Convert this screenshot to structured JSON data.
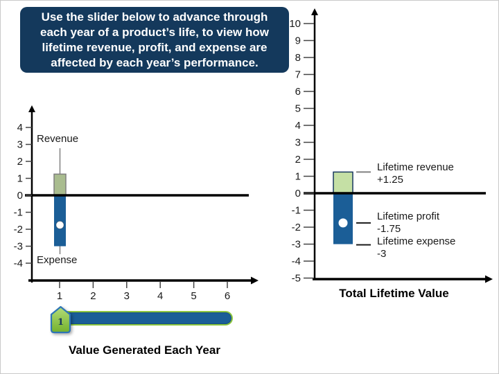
{
  "instruction_box": {
    "text": "Use the slider below to advance through each year of a product’s life, to view how lifetime revenue, profit, and expense are affected by each year’s performance.",
    "lines": [
      "Use the slider below to advance through",
      "each year of a product’s life, to view how",
      "lifetime revenue, profit, and expense are",
      "affected by each year’s performance."
    ]
  },
  "left_chart": {
    "title": "Value Generated Each Year",
    "revenue_label": "Revenue",
    "expense_label": "Expense"
  },
  "right_chart": {
    "title": "Total Lifetime Value",
    "revenue_label": "Lifetime revenue",
    "revenue_value": "+1.25",
    "profit_label": "Lifetime profit",
    "profit_value": "-1.75",
    "expense_label": "Lifetime expense",
    "expense_value": "-3"
  },
  "slider": {
    "value": "1",
    "min": 1,
    "max": 6
  },
  "colors": {
    "box_navy": "#14395C",
    "bar_blue": "#1B5E97",
    "bar_green_left": "#A9BC8F",
    "bar_green_left_border": "#7F7F7F",
    "bar_green_right": "#C5E0A5",
    "bar_green_right_border": "#17375E",
    "axis_black": "#000000",
    "connector_gray": "#808080",
    "slider_green": "#8DC63F",
    "handle_border_blue": "#2E75B6"
  },
  "chart_data": [
    {
      "id": "value-generated-each-year",
      "type": "bar",
      "title": "Value Generated Each Year",
      "x_ticks": [
        "1",
        "2",
        "3",
        "4",
        "5",
        "6"
      ],
      "y_ticks": [
        4,
        3,
        2,
        1,
        0,
        -1,
        -2,
        -3,
        -4
      ],
      "ylim": [
        -4.8,
        4.8
      ],
      "xlim": [
        0,
        6.7
      ],
      "grid": false,
      "current_year": 1,
      "series": [
        {
          "name": "Revenue",
          "year": 1,
          "value": 1.25
        },
        {
          "name": "Profit",
          "year": 1,
          "value": -1.75,
          "marker": "white-dot"
        },
        {
          "name": "Expense",
          "year": 1,
          "value": -3
        }
      ],
      "annotations": [
        "Revenue",
        "Expense"
      ]
    },
    {
      "id": "total-lifetime-value",
      "type": "bar",
      "title": "Total Lifetime Value",
      "y_ticks": [
        10,
        9,
        8,
        7,
        6,
        5,
        4,
        3,
        2,
        1,
        0,
        -1,
        -2,
        -3,
        -4,
        -5
      ],
      "ylim": [
        -5.2,
        10.8
      ],
      "grid": false,
      "series": [
        {
          "name": "Lifetime revenue",
          "value": 1.25,
          "label_value": "+1.25"
        },
        {
          "name": "Lifetime profit",
          "value": -1.75,
          "label_value": "-1.75",
          "marker": "white-dot"
        },
        {
          "name": "Lifetime expense",
          "value": -3,
          "label_value": "-3"
        }
      ]
    }
  ]
}
